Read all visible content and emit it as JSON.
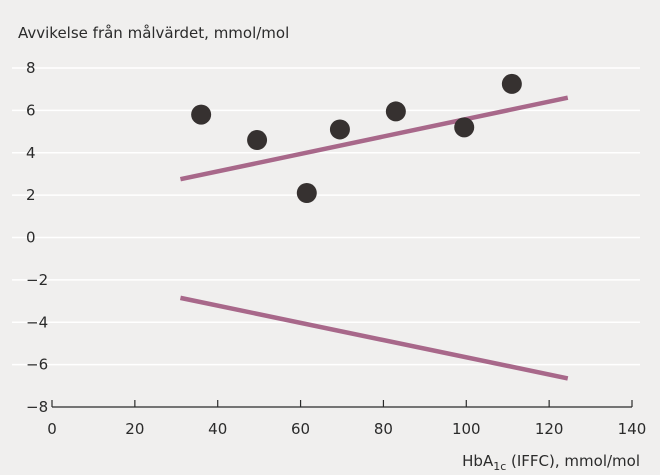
{
  "chart_data": {
    "type": "scatter",
    "ylabel": "Avvikelse från målvärdet, mmol/mol",
    "xlabel_main": "HbA",
    "xlabel_sub": "1c",
    "xlabel_rest": " (IFFC), mmol/mol",
    "xlim": [
      0,
      140
    ],
    "ylim": [
      -8,
      8
    ],
    "x_ticks": [
      0,
      20,
      40,
      60,
      80,
      100,
      120,
      140
    ],
    "y_ticks": [
      8,
      6,
      4,
      2,
      0,
      -2,
      -4,
      -6,
      -8
    ],
    "y_tick_labels": [
      "8",
      "6",
      "4",
      "2",
      "0",
      "−2",
      "−4",
      "−6",
      "−8"
    ],
    "grid": true,
    "points": [
      {
        "x": 36,
        "y": 5.8
      },
      {
        "x": 49.5,
        "y": 4.6
      },
      {
        "x": 61.5,
        "y": 2.1
      },
      {
        "x": 69.5,
        "y": 5.1
      },
      {
        "x": 83,
        "y": 5.95
      },
      {
        "x": 99.5,
        "y": 5.2
      },
      {
        "x": 111,
        "y": 7.25
      }
    ],
    "limit_lines": [
      {
        "x1": 31,
        "y1": 2.75,
        "x2": 124.5,
        "y2": 6.6
      },
      {
        "x1": 31,
        "y1": -2.85,
        "x2": 124.5,
        "y2": -6.65
      }
    ],
    "colors": {
      "background": "#f0efee",
      "grid": "#ffffff",
      "point": "#363130",
      "limit_line": "#a8688a",
      "axis": "#2b2b2b"
    }
  }
}
